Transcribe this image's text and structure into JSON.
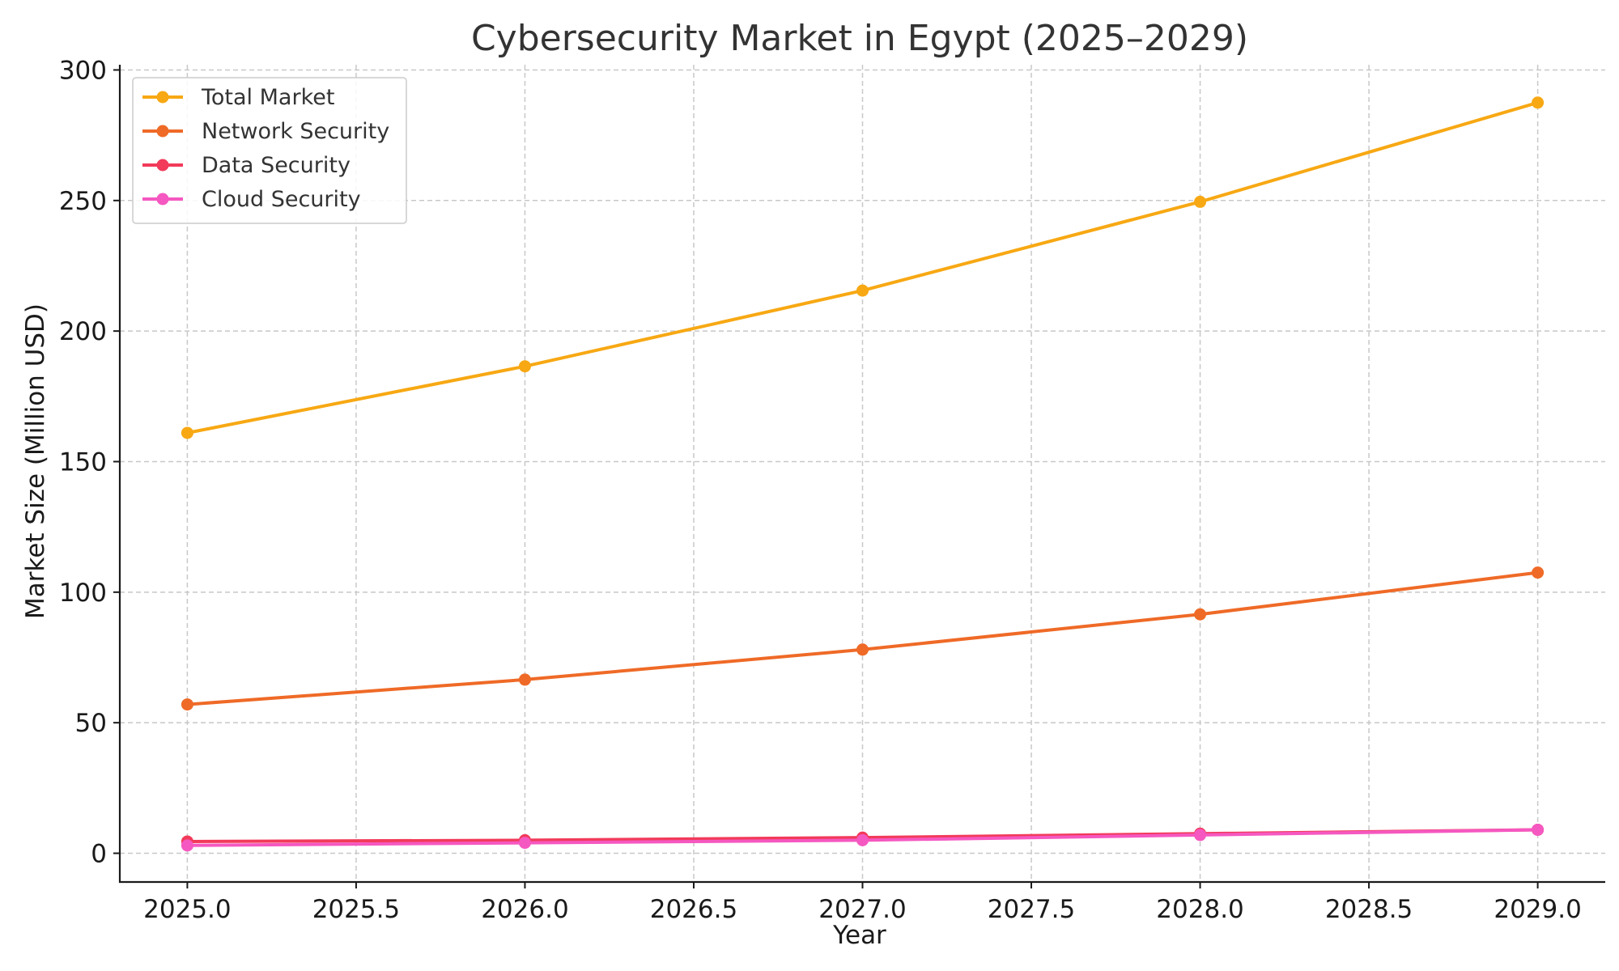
{
  "chart_data": {
    "type": "line",
    "title": "Cybersecurity Market in Egypt (2025–2029)",
    "xlabel": "Year",
    "ylabel": "Market Size (Million USD)",
    "x": [
      2025,
      2026,
      2027,
      2028,
      2029
    ],
    "xlim": [
      2024.8,
      2029.2
    ],
    "ylim": [
      -11,
      302
    ],
    "x_ticks": [
      "2025.0",
      "2025.5",
      "2026.0",
      "2026.5",
      "2027.0",
      "2027.5",
      "2028.0",
      "2028.5",
      "2029.0"
    ],
    "y_ticks": [
      "0",
      "50",
      "100",
      "150",
      "200",
      "250",
      "300"
    ],
    "grid": true,
    "legend_position": "top-left",
    "series": [
      {
        "name": "Total Market",
        "color": "#F7A813",
        "values": [
          161,
          186.5,
          215.5,
          249.5,
          287.5
        ]
      },
      {
        "name": "Network Security",
        "color": "#EF6A27",
        "values": [
          57,
          66.5,
          78,
          91.5,
          107.5
        ]
      },
      {
        "name": "Data Security",
        "color": "#F23A5A",
        "values": [
          4.5,
          5,
          6,
          7.5,
          9
        ]
      },
      {
        "name": "Cloud Security",
        "color": "#F558C0",
        "values": [
          3,
          4,
          5,
          7,
          9
        ]
      }
    ]
  }
}
